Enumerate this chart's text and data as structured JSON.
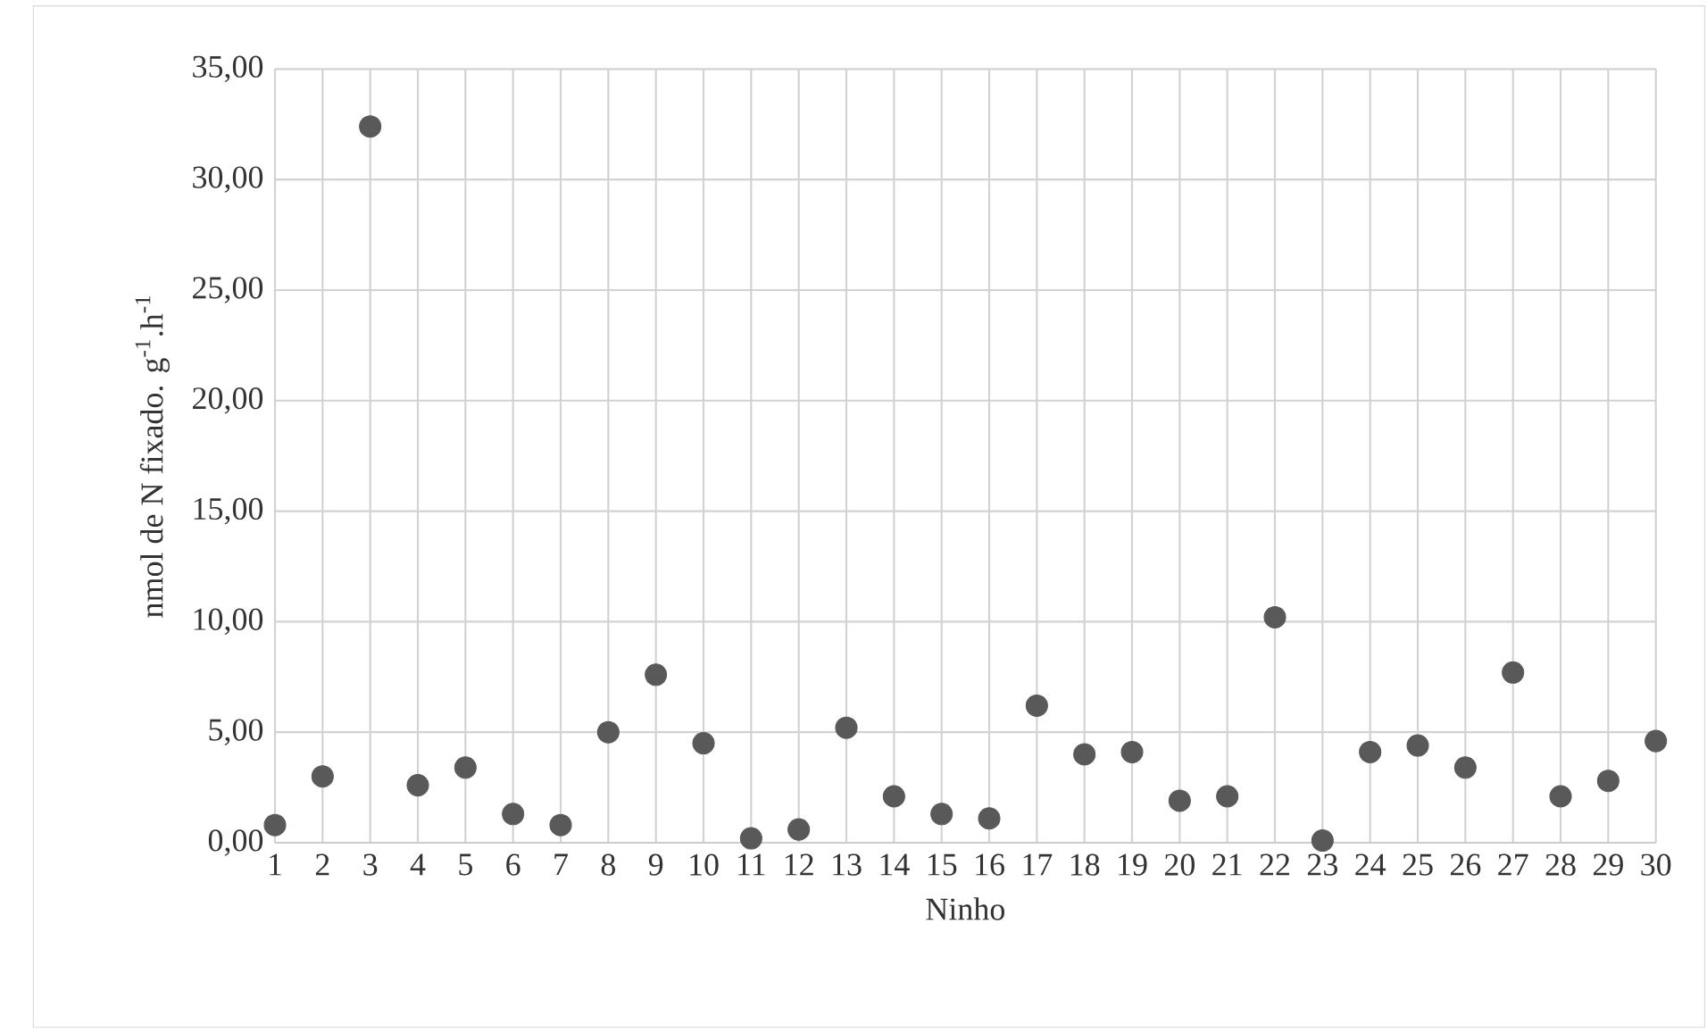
{
  "chart_data": {
    "type": "scatter",
    "xlabel": "Ninho",
    "ylabel": "nmol de N fixado. g$^{-1}$.h$^{-1}$",
    "categories": [
      "1",
      "2",
      "3",
      "4",
      "5",
      "6",
      "7",
      "8",
      "9",
      "10",
      "11",
      "12",
      "13",
      "14",
      "15",
      "16",
      "17",
      "18",
      "19",
      "20",
      "21",
      "22",
      "23",
      "24",
      "25",
      "26",
      "27",
      "28",
      "29",
      "30"
    ],
    "values": [
      0.8,
      3.0,
      32.4,
      2.6,
      3.4,
      1.3,
      0.8,
      5.0,
      7.6,
      4.5,
      0.2,
      0.6,
      5.2,
      2.1,
      1.3,
      1.1,
      6.2,
      4.0,
      4.1,
      1.9,
      2.1,
      10.2,
      0.1,
      4.1,
      4.4,
      3.4,
      7.7,
      2.1,
      2.8,
      4.6
    ],
    "color": "#595959",
    "marker": "circle",
    "grid": true,
    "ylim": [
      0,
      35
    ],
    "yticks": [
      {
        "value": 0,
        "label": "0,00"
      },
      {
        "value": 5,
        "label": "5,00"
      },
      {
        "value": 10,
        "label": "10,00"
      },
      {
        "value": 15,
        "label": "15,00"
      },
      {
        "value": 20,
        "label": "20,00"
      },
      {
        "value": 25,
        "label": "25,00"
      },
      {
        "value": 30,
        "label": "30,00"
      },
      {
        "value": 35,
        "label": "35,00"
      }
    ]
  }
}
